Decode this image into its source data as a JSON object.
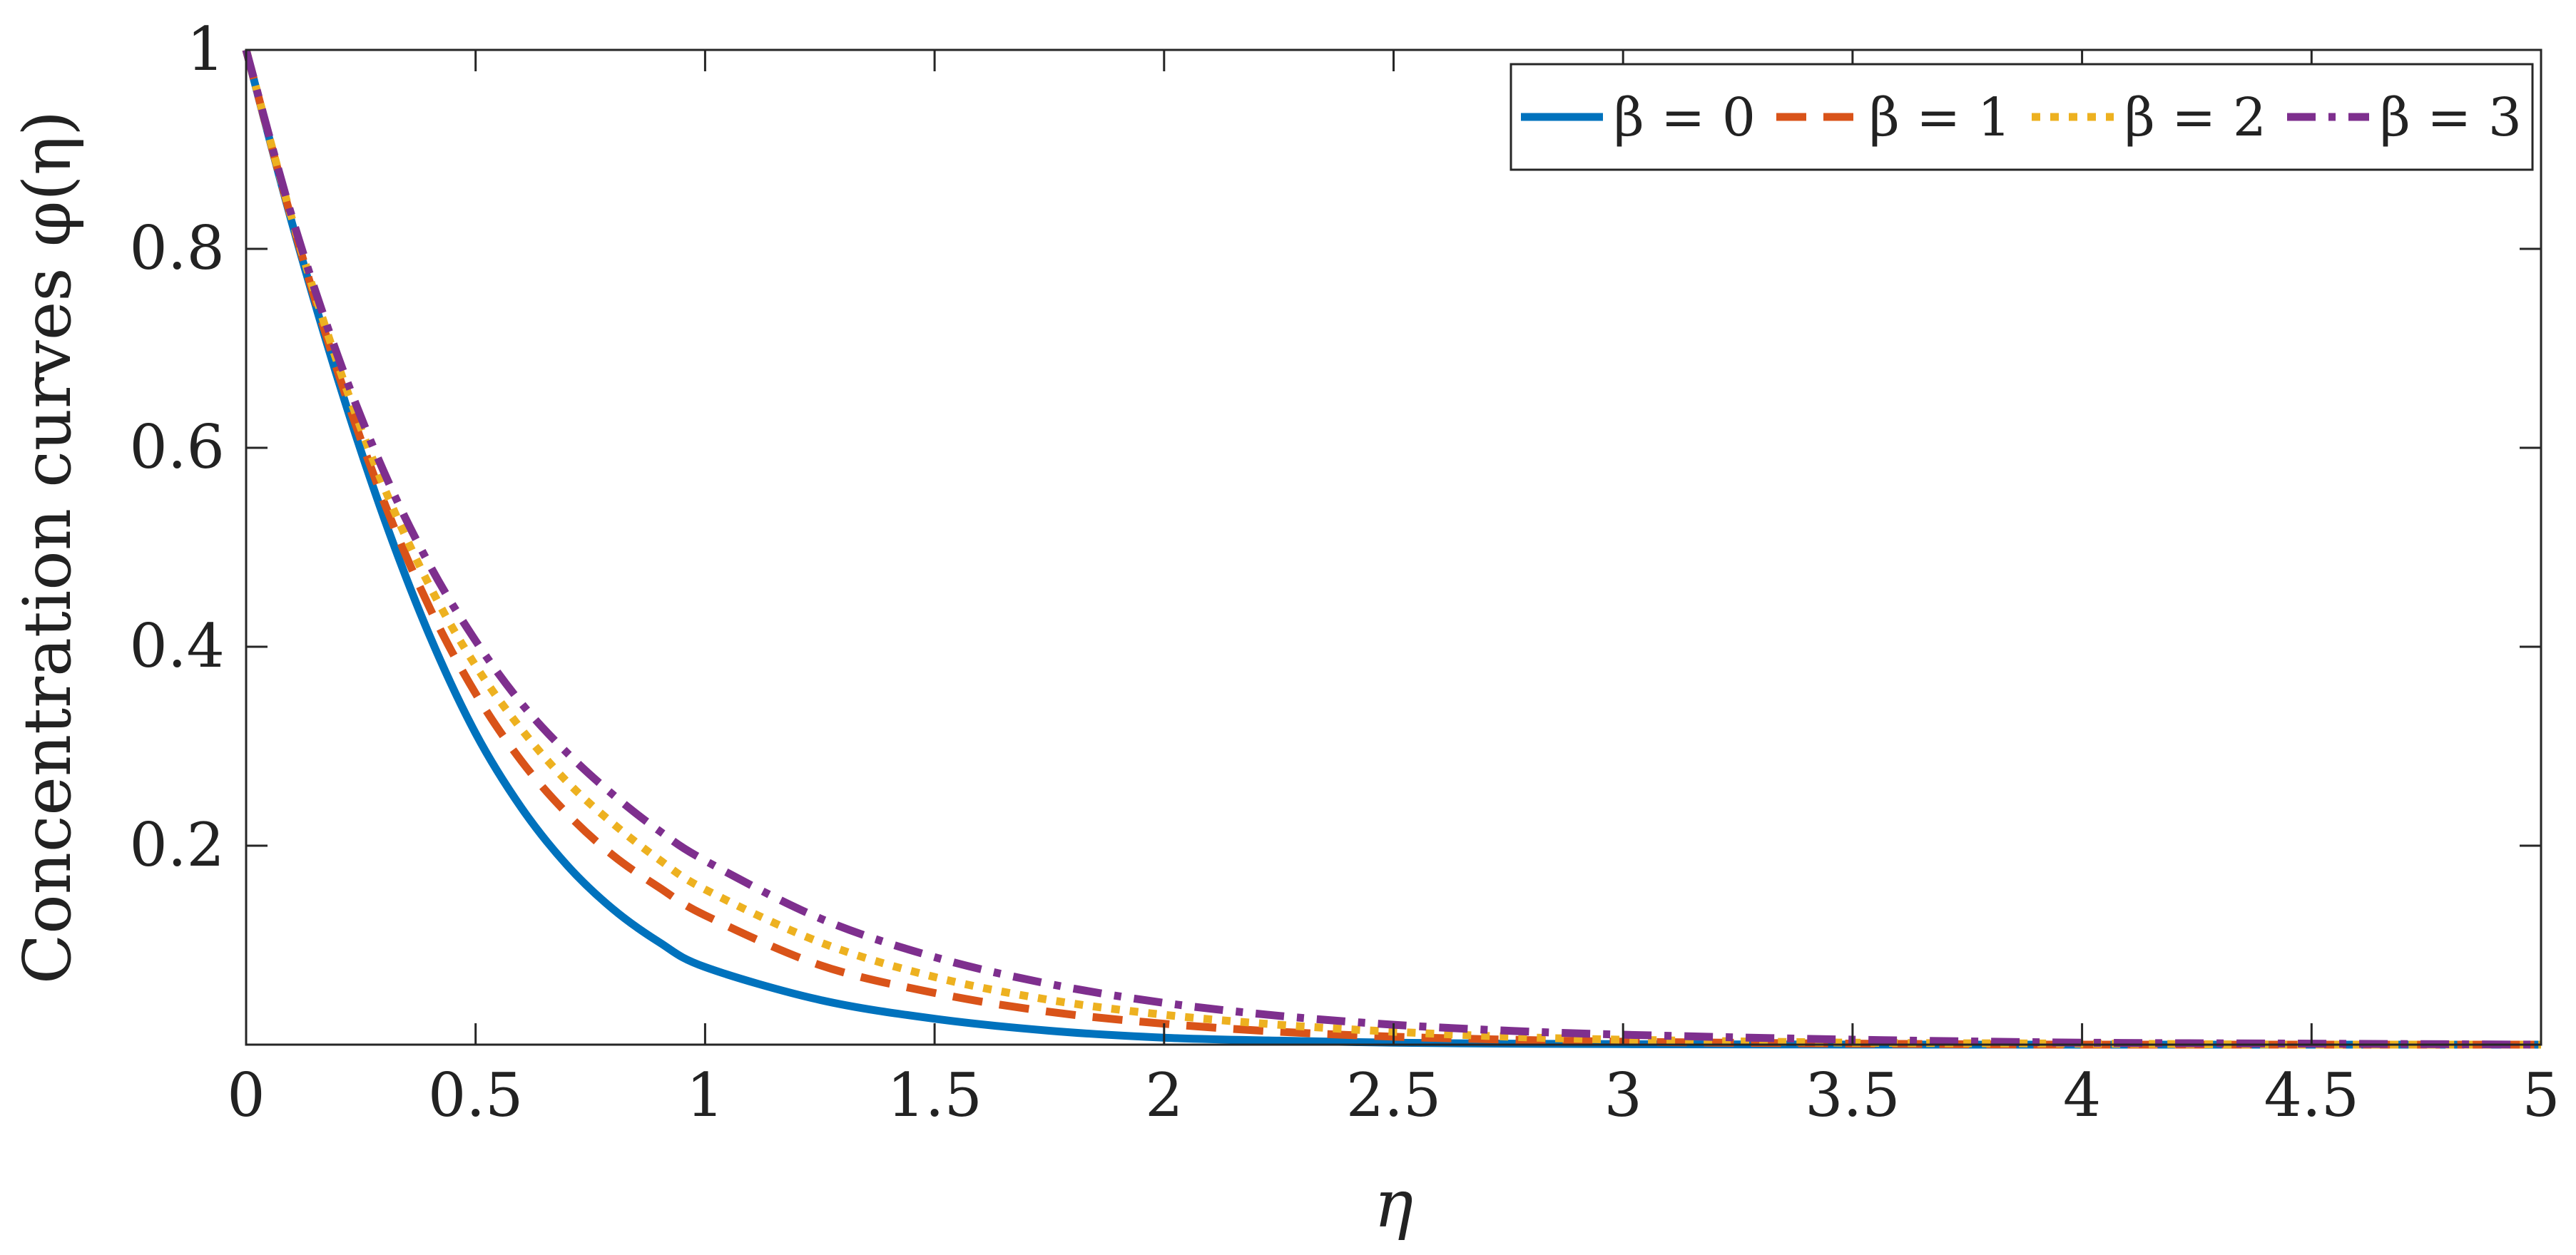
{
  "chart_data": {
    "type": "line",
    "title": "",
    "xlabel": "η",
    "ylabel": "Concentration curves φ(η)",
    "xlim": [
      0,
      5
    ],
    "ylim": [
      0,
      1
    ],
    "x_ticks": [
      0,
      0.5,
      1,
      1.5,
      2,
      2.5,
      3,
      3.5,
      4,
      4.5,
      5
    ],
    "x_tick_labels": [
      "0",
      "0.5",
      "1",
      "1.5",
      "2",
      "2.5",
      "3",
      "3.5",
      "4",
      "4.5",
      "5"
    ],
    "y_ticks": [
      0.2,
      0.4,
      0.6,
      0.8,
      1
    ],
    "y_tick_labels": [
      "0.2",
      "0.4",
      "0.6",
      "0.8",
      "1"
    ],
    "grid": false,
    "legend_position": "top-right",
    "legend_orientation": "horizontal",
    "x": [
      0,
      0.1,
      0.2,
      0.3,
      0.4,
      0.5,
      0.6,
      0.7,
      0.8,
      0.9,
      1.0,
      1.25,
      1.5,
      1.75,
      2.0,
      2.25,
      2.5,
      2.75,
      3.0,
      3.5,
      4.0,
      4.5,
      5.0
    ],
    "series": [
      {
        "name": "β = 0",
        "color": "#0072BD",
        "style": "solid",
        "values": [
          1.0,
          0.826,
          0.669,
          0.53,
          0.411,
          0.313,
          0.238,
          0.18,
          0.136,
          0.103,
          0.078,
          0.045,
          0.026,
          0.014,
          0.007,
          0.004,
          0.002,
          0.001,
          0.0005,
          0.0001,
          0.0,
          0.0,
          0.0
        ]
      },
      {
        "name": "β = 1",
        "color": "#D95319",
        "style": "dashed",
        "values": [
          1.0,
          0.828,
          0.676,
          0.546,
          0.439,
          0.353,
          0.285,
          0.232,
          0.19,
          0.158,
          0.13,
          0.08,
          0.052,
          0.033,
          0.021,
          0.013,
          0.008,
          0.005,
          0.003,
          0.001,
          0.0,
          0.0,
          0.0
        ]
      },
      {
        "name": "β = 2",
        "color": "#EDB120",
        "style": "dotted",
        "values": [
          1.0,
          0.83,
          0.684,
          0.561,
          0.461,
          0.381,
          0.317,
          0.264,
          0.222,
          0.186,
          0.156,
          0.103,
          0.068,
          0.045,
          0.03,
          0.02,
          0.013,
          0.008,
          0.005,
          0.002,
          0.001,
          0.0,
          0.0
        ]
      },
      {
        "name": "β = 3",
        "color": "#7E2F8E",
        "style": "dashdot",
        "values": [
          1.0,
          0.832,
          0.692,
          0.576,
          0.482,
          0.406,
          0.343,
          0.293,
          0.251,
          0.215,
          0.185,
          0.127,
          0.088,
          0.061,
          0.042,
          0.029,
          0.02,
          0.014,
          0.01,
          0.005,
          0.002,
          0.001,
          0.0
        ]
      }
    ]
  }
}
